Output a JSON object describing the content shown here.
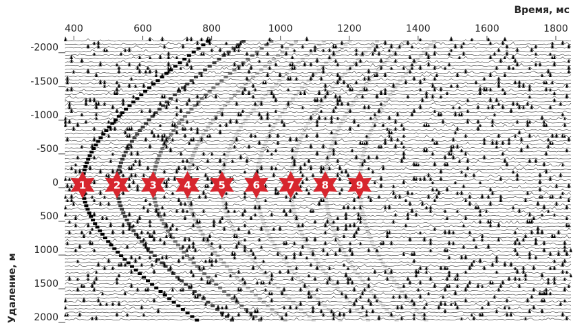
{
  "chart_data": {
    "type": "seismic",
    "x_label": "Время, мс",
    "y_label": "Удаление, м",
    "xlim": [
      375,
      1850
    ],
    "xticks": [
      400,
      600,
      800,
      1000,
      1200,
      1400,
      1600,
      1800
    ],
    "ylim": [
      -2150,
      2050
    ],
    "yticks": [
      -2000,
      -1500,
      -1000,
      -500,
      0,
      500,
      1000,
      1500,
      2000
    ],
    "events": [
      {
        "name": "1",
        "t0": 425,
        "velocity": 3200
      },
      {
        "name": "2",
        "t0": 525,
        "velocity": 2950
      },
      {
        "name": "3",
        "t0": 630,
        "velocity": 2870
      },
      {
        "name": "4",
        "t0": 730,
        "velocity": 2850
      },
      {
        "name": "5",
        "t0": 830,
        "velocity": 2800
      },
      {
        "name": "6",
        "t0": 930,
        "velocity": 2800
      },
      {
        "name": "7",
        "t0": 1030,
        "velocity": 2800
      },
      {
        "name": "8",
        "t0": 1130,
        "velocity": 2800
      },
      {
        "name": "9",
        "t0": 1230,
        "velocity": 2800
      }
    ],
    "marker_color": "#d7262e"
  }
}
